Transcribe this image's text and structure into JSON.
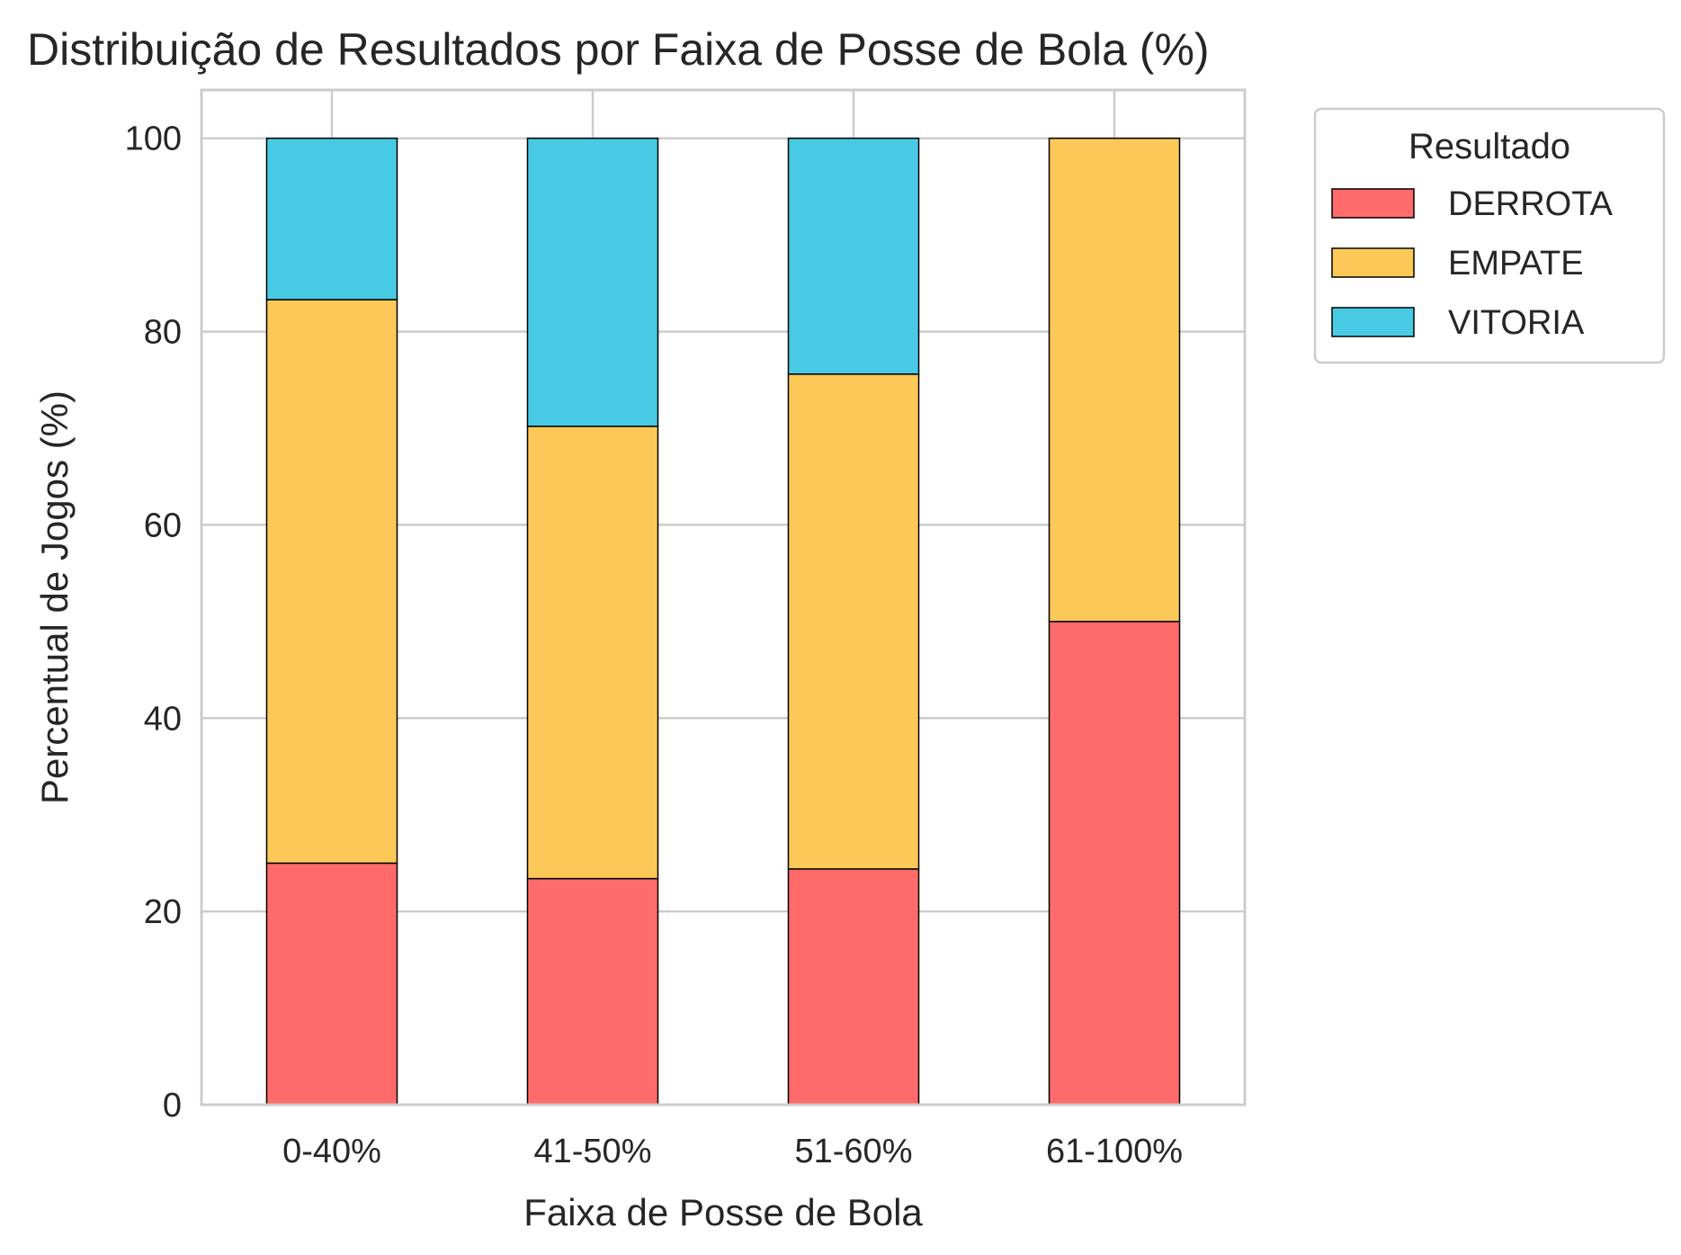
{
  "chart_data": {
    "type": "bar",
    "stacked": true,
    "title": "Distribuição de Resultados por Faixa de Posse de Bola (%)",
    "xlabel": "Faixa de Posse de Bola",
    "ylabel": "Percentual de Jogos (%)",
    "categories": [
      "0-40%",
      "41-50%",
      "51-60%",
      "61-100%"
    ],
    "ylim": [
      0,
      105
    ],
    "yticks": [
      0,
      20,
      40,
      60,
      80,
      100
    ],
    "grid": true,
    "legend": {
      "title": "Resultado",
      "placement": "outside-top-right"
    },
    "series": [
      {
        "name": "DERROTA",
        "color": "#FF6B6B",
        "values": [
          25.0,
          23.4,
          24.4,
          50.0
        ]
      },
      {
        "name": "EMPATE",
        "color": "#FCC858",
        "values": [
          58.3,
          46.8,
          51.2,
          50.0
        ]
      },
      {
        "name": "VITORIA",
        "color": "#48CAE4",
        "values": [
          16.7,
          29.8,
          24.4,
          0.0
        ]
      }
    ]
  }
}
